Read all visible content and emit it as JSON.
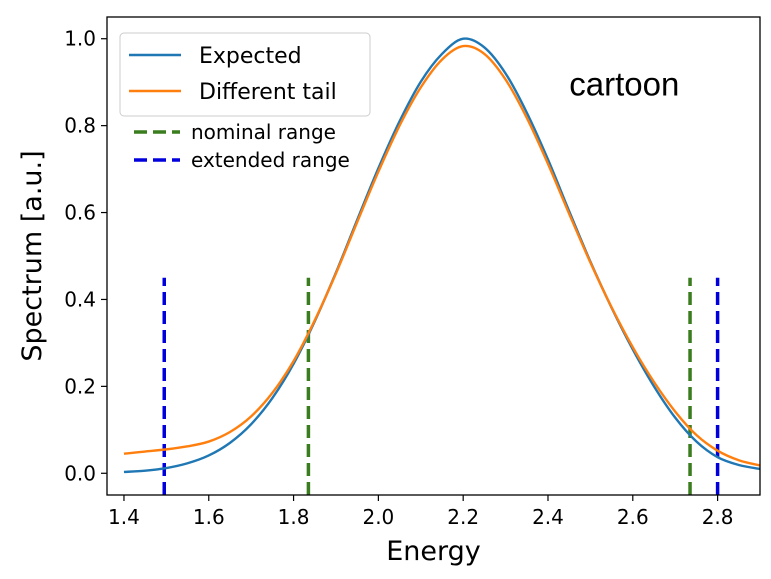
{
  "chart_data": {
    "type": "line",
    "title": "",
    "xlabel": "Energy",
    "ylabel": "Spectrum [a.u.]",
    "xlim": [
      1.36,
      2.9
    ],
    "ylim": [
      -0.05,
      1.05
    ],
    "xticks": [
      "1.4",
      "1.6",
      "1.8",
      "2.0",
      "2.2",
      "2.4",
      "2.6",
      "2.8"
    ],
    "yticks": [
      "0.0",
      "0.2",
      "0.4",
      "0.6",
      "0.8",
      "1.0"
    ],
    "grid": false,
    "legend_position": "top-left",
    "series": [
      {
        "name": "Expected",
        "color": "#1f77b4",
        "x": [
          1.4,
          1.45,
          1.5,
          1.55,
          1.6,
          1.65,
          1.7,
          1.75,
          1.8,
          1.85,
          1.9,
          1.95,
          2.0,
          2.05,
          2.1,
          2.15,
          2.2,
          2.25,
          2.3,
          2.35,
          2.4,
          2.45,
          2.5,
          2.55,
          2.6,
          2.65,
          2.7,
          2.75,
          2.8,
          2.85,
          2.9
        ],
        "y": [
          0.003,
          0.006,
          0.012,
          0.023,
          0.041,
          0.07,
          0.113,
          0.173,
          0.252,
          0.35,
          0.462,
          0.583,
          0.702,
          0.81,
          0.901,
          0.965,
          1.0,
          0.98,
          0.92,
          0.83,
          0.722,
          0.603,
          0.487,
          0.381,
          0.285,
          0.2,
          0.128,
          0.073,
          0.037,
          0.019,
          0.01
        ]
      },
      {
        "name": "Different tail",
        "color": "#ff7f0e",
        "x": [
          1.4,
          1.45,
          1.5,
          1.55,
          1.6,
          1.65,
          1.7,
          1.75,
          1.8,
          1.85,
          1.9,
          1.95,
          2.0,
          2.05,
          2.1,
          2.15,
          2.2,
          2.25,
          2.3,
          2.35,
          2.4,
          2.45,
          2.5,
          2.55,
          2.6,
          2.65,
          2.7,
          2.75,
          2.8,
          2.85,
          2.9
        ],
        "y": [
          0.045,
          0.05,
          0.055,
          0.062,
          0.073,
          0.095,
          0.131,
          0.185,
          0.258,
          0.352,
          0.46,
          0.578,
          0.694,
          0.8,
          0.888,
          0.952,
          0.983,
          0.965,
          0.906,
          0.818,
          0.712,
          0.597,
          0.485,
          0.382,
          0.29,
          0.21,
          0.142,
          0.088,
          0.052,
          0.03,
          0.018
        ]
      }
    ],
    "vlines": [
      {
        "name": "nominal range",
        "color": "#3a7d1e",
        "x": [
          1.835,
          2.735
        ],
        "ymin": -0.05,
        "ymax": 0.45
      },
      {
        "name": "extended range",
        "color": "#0000dd",
        "x": [
          1.495,
          2.8
        ],
        "ymin": -0.05,
        "ymax": 0.45
      }
    ],
    "annotations": [
      {
        "text": "cartoon",
        "x": 2.58,
        "y": 0.895
      }
    ]
  }
}
